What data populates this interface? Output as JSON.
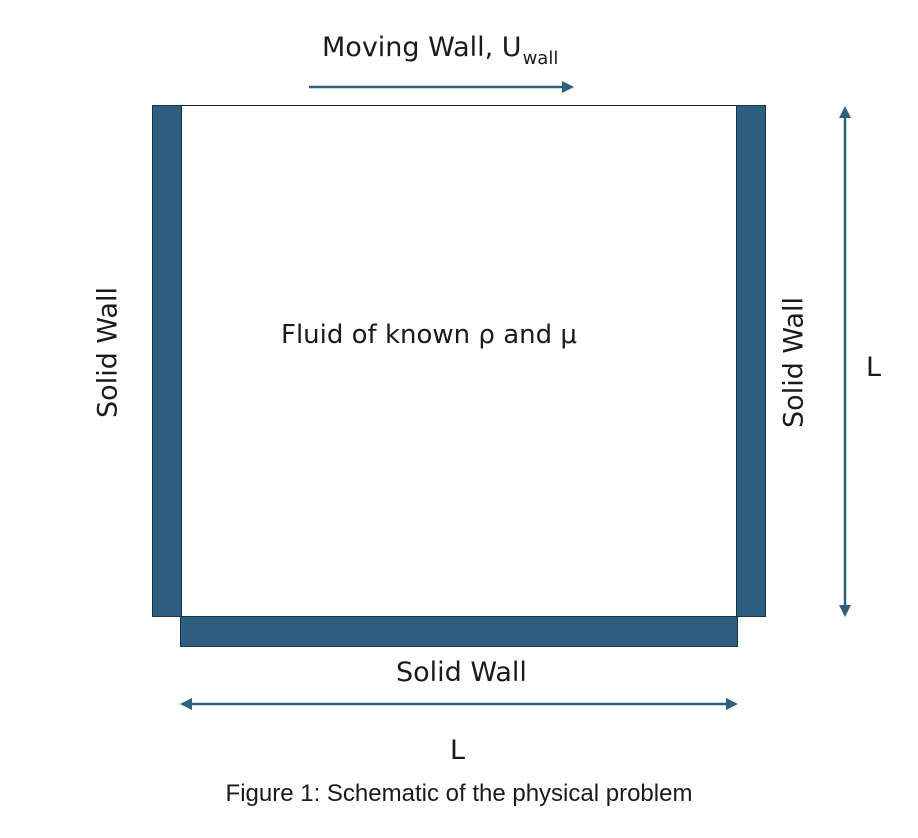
{
  "diagram": {
    "top_label": {
      "main": "Moving Wall, U",
      "subscript": "wall"
    },
    "interior_label": "Fluid of known ρ and μ",
    "left_wall_label": "Solid Wall",
    "right_wall_label": "Solid Wall",
    "bottom_wall_label": "Solid Wall",
    "horizontal_dimension": "L",
    "vertical_dimension": "L",
    "caption": "Figure 1: Schematic of the physical problem",
    "colors": {
      "wall_fill": "#2e5f7e",
      "wall_edge": "#163347",
      "arrow": "#2e5f7e",
      "text": "#1a1a1a"
    }
  }
}
